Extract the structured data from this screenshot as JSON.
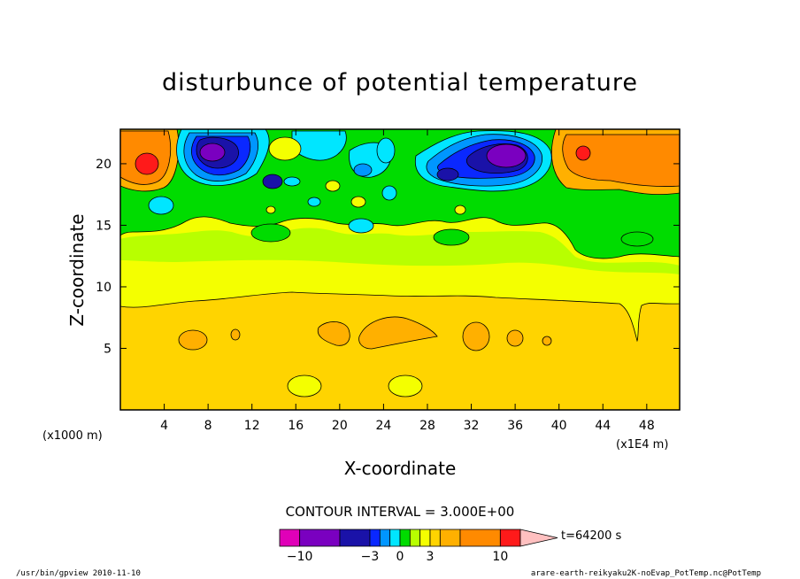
{
  "chart_data": {
    "type": "contour",
    "title": "disturbunce of potential temperature",
    "xlabel": "X-coordinate",
    "ylabel": "Z-coordinate",
    "x_unit": "(x1000 m)",
    "x_scale_note": "(x1E4 m)",
    "xlim": [
      0,
      51
    ],
    "ylim": [
      0,
      22.8
    ],
    "x_ticks": [
      4,
      8,
      12,
      16,
      20,
      24,
      28,
      32,
      36,
      40,
      44,
      48
    ],
    "y_ticks": [
      5,
      10,
      15,
      20
    ],
    "contour_interval_text": "CONTOUR INTERVAL = 3.000E+00",
    "time_label": "t=64200 s",
    "colorbar": {
      "levels": [
        -12,
        -10,
        -6,
        -3,
        -2,
        -1,
        0,
        1,
        2,
        3,
        4,
        6,
        10,
        12
      ],
      "colors": [
        "#e000b8",
        "#7a00c0",
        "#1a12a8",
        "#0a28ff",
        "#0096ff",
        "#00e6ff",
        "#00dc00",
        "#b8ff00",
        "#f4ff00",
        "#ffd400",
        "#ffb000",
        "#ff8a00",
        "#ff1a1a",
        "#ff7a7a",
        "#ffc0c0"
      ],
      "tick_labels": [
        "−10",
        "−3",
        "0",
        "3",
        "10"
      ],
      "tick_values": [
        -10,
        -3,
        0,
        3,
        10
      ]
    },
    "regions": [
      {
        "name": "upper-green-layer",
        "level": 0,
        "approx_z_range": [
          14,
          22.8
        ]
      },
      {
        "name": "lower-orange-layer",
        "level": 3,
        "approx_z_range": [
          0,
          8.5
        ]
      },
      {
        "name": "left-warm-max",
        "x": 2.5,
        "z": 20,
        "value": 10
      },
      {
        "name": "right-warm-max",
        "x": 42.5,
        "z": 20.8,
        "value": 10
      },
      {
        "name": "left-cold-min",
        "x": 8.5,
        "z": 21,
        "value": -10
      },
      {
        "name": "right-cold-min",
        "x": 35.5,
        "z": 21,
        "value": -10
      }
    ],
    "grid": false
  },
  "footer": {
    "left": "/usr/bin/gpview   2010-11-10",
    "right": "arare-earth-reikyaku2K-noEvap_PotTemp.nc@PotTemp"
  }
}
